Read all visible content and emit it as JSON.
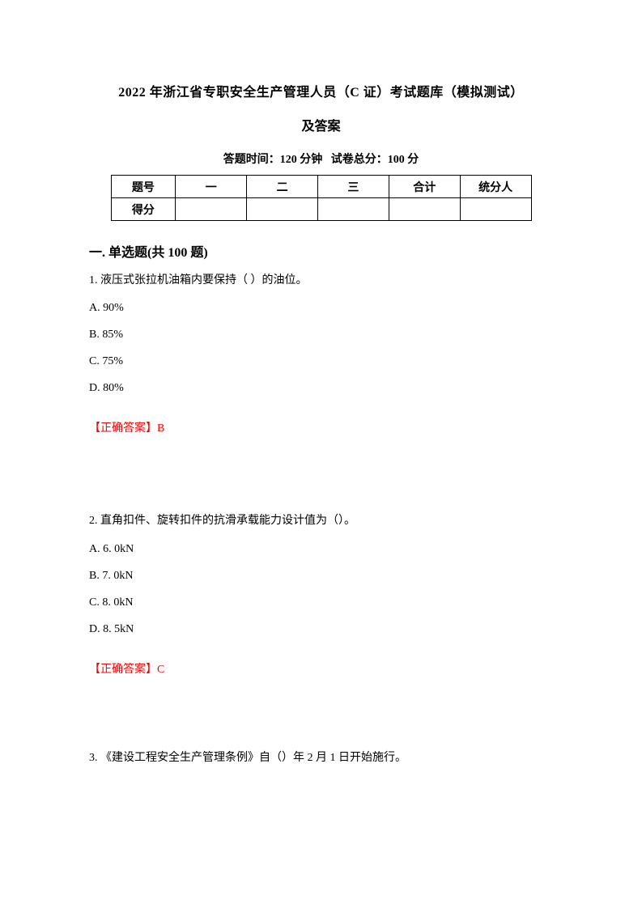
{
  "title": {
    "line1": "2022 年浙江省专职安全生产管理人员（C 证）考试题库（模拟测试）",
    "line2": "及答案"
  },
  "exam_info": {
    "time_label": "答题时间：",
    "time_value": "120 分钟",
    "total_label": "试卷总分：",
    "total_value": "100 分"
  },
  "score_table": {
    "headers": [
      "题号",
      "一",
      "二",
      "三",
      "合计",
      "统分人"
    ],
    "row_label": "得分"
  },
  "section1": {
    "title": "一. 单选题(共 100 题)"
  },
  "q1": {
    "text": "1. 液压式张拉机油箱内要保持（ ）的油位。",
    "options": {
      "a": "A. 90%",
      "b": "B. 85%",
      "c": "C. 75%",
      "d": "D. 80%"
    },
    "answer_label": "【正确答案】",
    "answer_value": "B"
  },
  "q2": {
    "text": "2. 直角扣件、旋转扣件的抗滑承载能力设计值为（）。",
    "options": {
      "a": "A. 6. 0kN",
      "b": "B. 7. 0kN",
      "c": "C. 8. 0kN",
      "d": "D. 8. 5kN"
    },
    "answer_label": "【正确答案】",
    "answer_value": "C"
  },
  "q3": {
    "text": "3. 《建设工程安全生产管理条例》自（）年 2 月 1 日开始施行。"
  },
  "colors": {
    "text": "#000000",
    "answer": "#ff0000",
    "background": "#ffffff",
    "border": "#000000"
  }
}
